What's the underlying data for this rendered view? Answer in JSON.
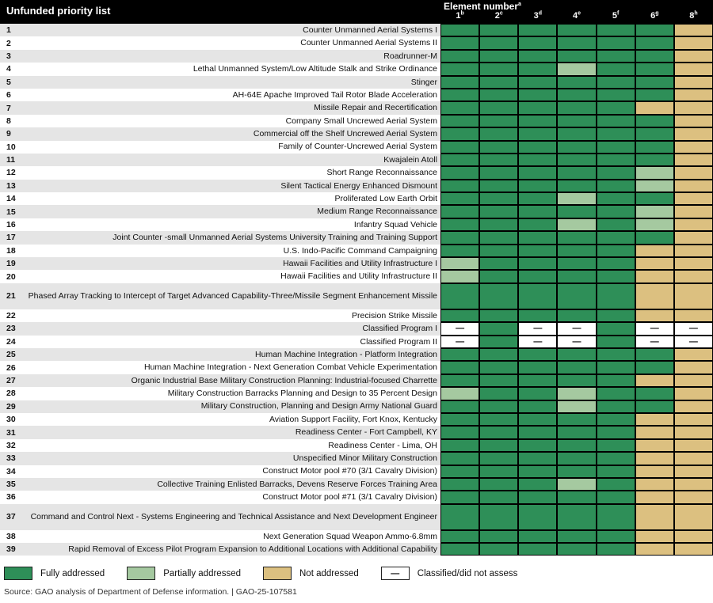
{
  "header": {
    "title": "Unfunded priority list",
    "element_label": "Element number",
    "element_label_sup": "a"
  },
  "legend": [
    {
      "key": "F",
      "label": "Fully addressed"
    },
    {
      "key": "P",
      "label": "Partially addressed"
    },
    {
      "key": "N",
      "label": "Not addressed"
    },
    {
      "key": "C",
      "label": "Classified/did not assess",
      "dash": "—"
    }
  ],
  "source": "Source: GAO analysis of Department of Defense information.  |  GAO-25-107581",
  "status_colors": {
    "fully_addressed": "#2e8f58",
    "partially_addressed": "#a5c9a0",
    "not_addressed": "#dcc080",
    "classified": "#ffffff"
  },
  "dash_glyph": "—",
  "chart_data": {
    "type": "heatmap",
    "title": "Unfunded priority list vs Element number",
    "status_codes": {
      "F": "Fully addressed",
      "P": "Partially addressed",
      "N": "Not addressed",
      "C": "Classified/did not assess"
    },
    "columns": [
      {
        "num": "1",
        "sup": "b"
      },
      {
        "num": "2",
        "sup": "c"
      },
      {
        "num": "3",
        "sup": "d"
      },
      {
        "num": "4",
        "sup": "e"
      },
      {
        "num": "5",
        "sup": "f"
      },
      {
        "num": "6",
        "sup": "g"
      },
      {
        "num": "8",
        "sup": "h"
      }
    ],
    "rows": [
      {
        "rank": "1",
        "name": "Counter Unmanned Aerial Systems I",
        "statuses": [
          "F",
          "F",
          "F",
          "F",
          "F",
          "F",
          "N"
        ]
      },
      {
        "rank": "2",
        "name": "Counter Unmanned Aerial Systems II",
        "statuses": [
          "F",
          "F",
          "F",
          "F",
          "F",
          "F",
          "N"
        ]
      },
      {
        "rank": "3",
        "name": "Roadrunner-M",
        "statuses": [
          "F",
          "F",
          "F",
          "F",
          "F",
          "F",
          "N"
        ]
      },
      {
        "rank": "4",
        "name": "Lethal Unmanned System/Low Altitude Stalk and Strike Ordinance",
        "statuses": [
          "F",
          "F",
          "F",
          "P",
          "F",
          "F",
          "N"
        ]
      },
      {
        "rank": "5",
        "name": "Stinger",
        "statuses": [
          "F",
          "F",
          "F",
          "F",
          "F",
          "F",
          "N"
        ]
      },
      {
        "rank": "6",
        "name": "AH-64E Apache Improved Tail Rotor Blade Acceleration",
        "statuses": [
          "F",
          "F",
          "F",
          "F",
          "F",
          "F",
          "N"
        ]
      },
      {
        "rank": "7",
        "name": "Missile Repair and Recertification",
        "statuses": [
          "F",
          "F",
          "F",
          "F",
          "F",
          "N",
          "N"
        ]
      },
      {
        "rank": "8",
        "name": "Company Small Uncrewed Aerial System",
        "statuses": [
          "F",
          "F",
          "F",
          "F",
          "F",
          "F",
          "N"
        ]
      },
      {
        "rank": "9",
        "name": "Commercial off the Shelf Uncrewed Aerial System",
        "statuses": [
          "F",
          "F",
          "F",
          "F",
          "F",
          "F",
          "N"
        ]
      },
      {
        "rank": "10",
        "name": "Family of Counter-Uncrewed Aerial System",
        "statuses": [
          "F",
          "F",
          "F",
          "F",
          "F",
          "F",
          "N"
        ]
      },
      {
        "rank": "11",
        "name": "Kwajalein Atoll",
        "statuses": [
          "F",
          "F",
          "F",
          "F",
          "F",
          "F",
          "N"
        ]
      },
      {
        "rank": "12",
        "name": "Short Range Reconnaissance",
        "statuses": [
          "F",
          "F",
          "F",
          "F",
          "F",
          "P",
          "N"
        ]
      },
      {
        "rank": "13",
        "name": "Silent Tactical Energy Enhanced Dismount",
        "statuses": [
          "F",
          "F",
          "F",
          "F",
          "F",
          "P",
          "N"
        ]
      },
      {
        "rank": "14",
        "name": "Proliferated Low Earth Orbit",
        "statuses": [
          "F",
          "F",
          "F",
          "P",
          "F",
          "F",
          "N"
        ]
      },
      {
        "rank": "15",
        "name": "Medium Range Reconnaissance",
        "statuses": [
          "F",
          "F",
          "F",
          "F",
          "F",
          "P",
          "N"
        ]
      },
      {
        "rank": "16",
        "name": "Infantry Squad Vehicle",
        "statuses": [
          "F",
          "F",
          "F",
          "P",
          "F",
          "P",
          "N"
        ]
      },
      {
        "rank": "17",
        "name": "Joint Counter -small Unmanned Aerial Systems University Training and Training Support",
        "statuses": [
          "F",
          "F",
          "F",
          "F",
          "F",
          "F",
          "N"
        ]
      },
      {
        "rank": "18",
        "name": "U.S. Indo-Pacific Command Campaigning",
        "statuses": [
          "F",
          "F",
          "F",
          "F",
          "F",
          "N",
          "N"
        ]
      },
      {
        "rank": "19",
        "name": "Hawaii Facilities and Utility Infrastructure I",
        "statuses": [
          "P",
          "F",
          "F",
          "F",
          "F",
          "N",
          "N"
        ]
      },
      {
        "rank": "20",
        "name": "Hawaii Facilities and Utility Infrastructure II",
        "statuses": [
          "P",
          "F",
          "F",
          "F",
          "F",
          "N",
          "N"
        ]
      },
      {
        "rank": "21",
        "name": "Phased Array Tracking to Intercept of Target Advanced Capability-Three/Missile Segment Enhancement Missile",
        "tall": true,
        "statuses": [
          "F",
          "F",
          "F",
          "F",
          "F",
          "N",
          "N"
        ]
      },
      {
        "rank": "22",
        "name": "Precision Strike Missile",
        "statuses": [
          "F",
          "F",
          "F",
          "F",
          "F",
          "N",
          "N"
        ]
      },
      {
        "rank": "23",
        "name": "Classified Program I",
        "statuses": [
          "C",
          "F",
          "C",
          "C",
          "F",
          "C",
          "C"
        ]
      },
      {
        "rank": "24",
        "name": "Classified Program II",
        "statuses": [
          "C",
          "F",
          "C",
          "C",
          "F",
          "C",
          "C"
        ]
      },
      {
        "rank": "25",
        "name": "Human Machine Integration - Platform Integration",
        "statuses": [
          "F",
          "F",
          "F",
          "F",
          "F",
          "F",
          "N"
        ]
      },
      {
        "rank": "26",
        "name": "Human Machine Integration - Next Generation Combat Vehicle Experimentation",
        "statuses": [
          "F",
          "F",
          "F",
          "F",
          "F",
          "F",
          "N"
        ]
      },
      {
        "rank": "27",
        "name": "Organic Industrial Base Military Construction Planning: Industrial-focused Charrette",
        "statuses": [
          "F",
          "F",
          "F",
          "F",
          "F",
          "N",
          "N"
        ]
      },
      {
        "rank": "28",
        "name": "Military Construction Barracks Planning and Design to 35 Percent Design",
        "statuses": [
          "P",
          "F",
          "F",
          "P",
          "F",
          "F",
          "N"
        ]
      },
      {
        "rank": "29",
        "name": "Military Construction, Planning and Design Army National Guard",
        "statuses": [
          "F",
          "F",
          "F",
          "P",
          "F",
          "F",
          "N"
        ]
      },
      {
        "rank": "30",
        "name": "Aviation Support Facility, Fort Knox, Kentucky",
        "statuses": [
          "F",
          "F",
          "F",
          "F",
          "F",
          "N",
          "N"
        ]
      },
      {
        "rank": "31",
        "name": "Readiness Center - Fort Campbell, KY",
        "statuses": [
          "F",
          "F",
          "F",
          "F",
          "F",
          "N",
          "N"
        ]
      },
      {
        "rank": "32",
        "name": "Readiness Center - Lima, OH",
        "statuses": [
          "F",
          "F",
          "F",
          "F",
          "F",
          "N",
          "N"
        ]
      },
      {
        "rank": "33",
        "name": "Unspecified Minor Military Construction",
        "statuses": [
          "F",
          "F",
          "F",
          "F",
          "F",
          "N",
          "N"
        ]
      },
      {
        "rank": "34",
        "name": "Construct Motor pool #70 (3/1 Cavalry Division)",
        "statuses": [
          "F",
          "F",
          "F",
          "F",
          "F",
          "N",
          "N"
        ]
      },
      {
        "rank": "35",
        "name": "Collective Training Enlisted Barracks, Devens Reserve Forces Training Area",
        "statuses": [
          "F",
          "F",
          "F",
          "P",
          "F",
          "N",
          "N"
        ]
      },
      {
        "rank": "36",
        "name": "Construct Motor pool #71 (3/1 Cavalry Division)",
        "statuses": [
          "F",
          "F",
          "F",
          "F",
          "F",
          "N",
          "N"
        ]
      },
      {
        "rank": "37",
        "name": "Command and Control Next - Systems Engineering and Technical Assistance and Next Development Engineer",
        "tall": true,
        "statuses": [
          "F",
          "F",
          "F",
          "F",
          "F",
          "N",
          "N"
        ]
      },
      {
        "rank": "38",
        "name": "Next Generation Squad Weapon Ammo-6.8mm",
        "statuses": [
          "F",
          "F",
          "F",
          "F",
          "F",
          "N",
          "N"
        ]
      },
      {
        "rank": "39",
        "name": "Rapid Removal of Excess Pilot Program Expansion to Additional Locations with Additional Capability",
        "statuses": [
          "F",
          "F",
          "F",
          "F",
          "F",
          "N",
          "N"
        ]
      }
    ]
  }
}
